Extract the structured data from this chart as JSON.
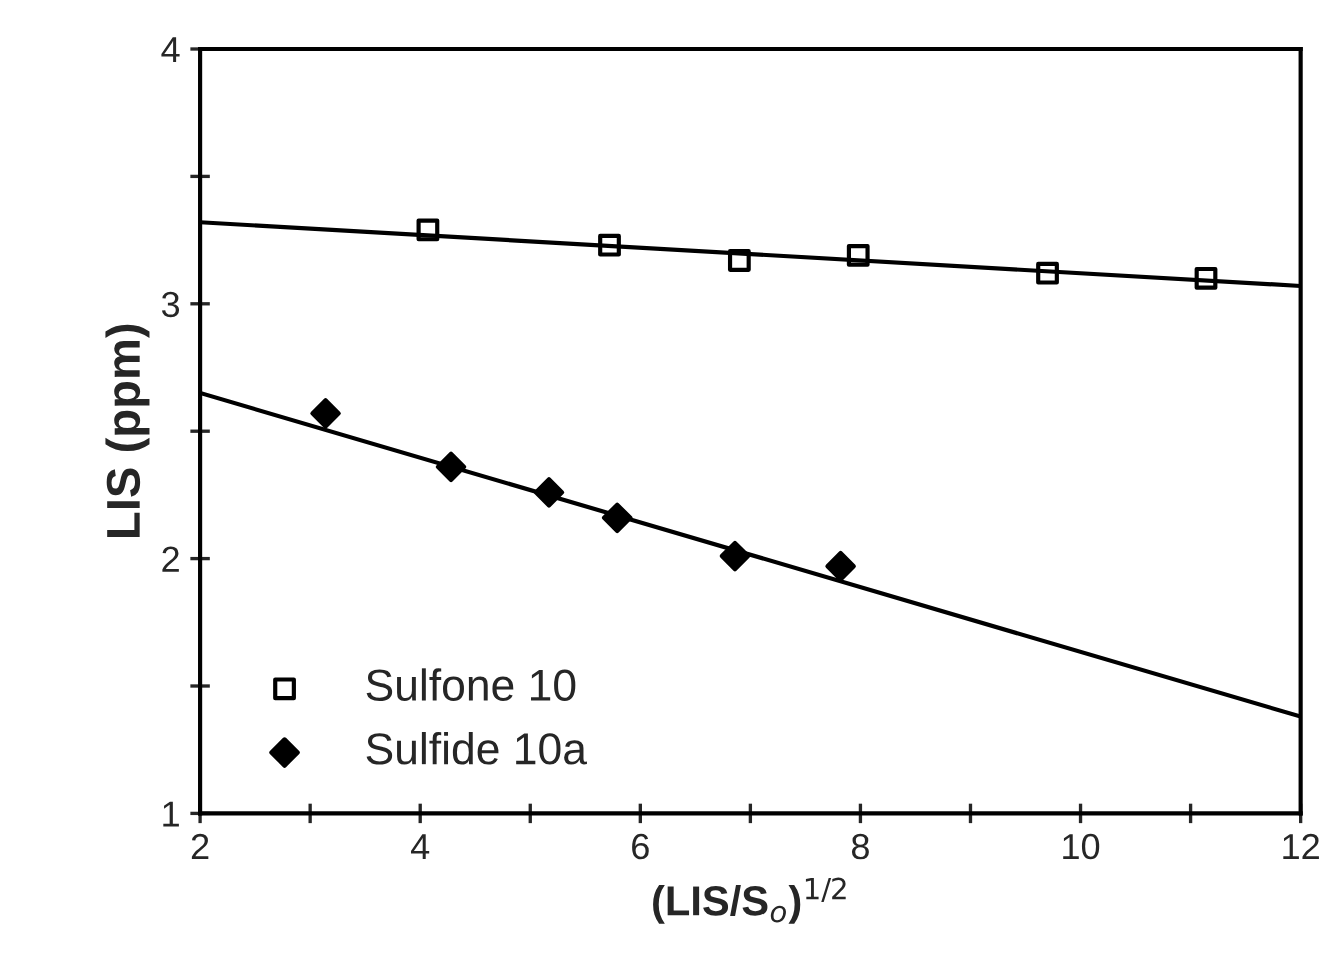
{
  "chart_data": {
    "type": "scatter",
    "xlabel": "(LIS/S$_{o}$)$^{1/2}$",
    "ylabel": "LIS (ppm)",
    "xlim": [
      2,
      12
    ],
    "ylim": [
      1,
      4
    ],
    "xticks": [
      2,
      {
        "value": 3,
        "label": null
      },
      4,
      {
        "value": 5,
        "label": null
      },
      6,
      {
        "value": 7,
        "label": null
      },
      8,
      {
        "value": 9,
        "label": null
      },
      10,
      {
        "value": 11,
        "label": null
      },
      12
    ],
    "yticks": [
      1,
      {
        "value": 1.5,
        "label": null
      },
      2,
      {
        "value": 2.5,
        "label": null
      },
      3,
      {
        "value": 3.5,
        "label": null
      },
      4
    ],
    "grid": false,
    "legend": "bottom left",
    "series": [
      {
        "name": "Sulfone 10",
        "color": "#000000",
        "marker": "square",
        "x": [
          4.07,
          5.72,
          6.9,
          7.98,
          9.7,
          11.14
        ],
        "values": [
          3.29,
          3.23,
          3.17,
          3.19,
          3.12,
          3.1
        ]
      },
      {
        "name": "Sulfide 10a",
        "color": "#000000",
        "marker": "diamond",
        "x": [
          3.14,
          4.28,
          5.17,
          5.79,
          6.86,
          7.82
        ],
        "values": [
          2.57,
          2.36,
          2.26,
          2.16,
          2.01,
          1.97
        ]
      },
      {
        "type": "line",
        "color": "#000000",
        "marker": "none",
        "x": [
          2,
          12
        ],
        "values": [
          3.32,
          3.07
        ]
      },
      {
        "type": "line",
        "color": "#000000",
        "marker": "none",
        "x": [
          2,
          12
        ],
        "values": [
          2.65,
          1.38
        ]
      }
    ]
  }
}
